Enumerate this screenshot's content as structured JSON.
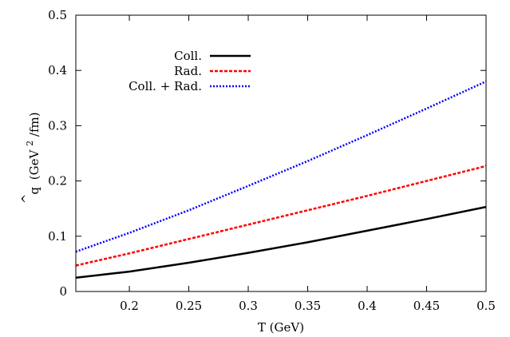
{
  "chart_data": {
    "type": "line",
    "xlabel": "T (GeV)",
    "ylabel": {
      "hat": "^",
      "symbol": "q",
      "unit_prefix": "(GeV",
      "unit_sup": "2",
      "unit_suffix": "/fm)"
    },
    "xlim": [
      0.155,
      0.5
    ],
    "ylim": [
      0,
      0.5
    ],
    "x_ticks": [
      0.2,
      0.25,
      0.3,
      0.35,
      0.4,
      0.45,
      0.5
    ],
    "x_tick_labels": [
      "0.2",
      "0.25",
      "0.3",
      "0.35",
      "0.4",
      "0.45",
      "0.5"
    ],
    "y_ticks": [
      0,
      0.1,
      0.2,
      0.3,
      0.4,
      0.5
    ],
    "y_tick_labels": [
      "0",
      "0.1",
      "0.2",
      "0.3",
      "0.4",
      "0.5"
    ],
    "grid": false,
    "legend_position": "top-left",
    "series": [
      {
        "name": "Coll.",
        "color": "#000000",
        "style": "solid",
        "x": [
          0.155,
          0.2,
          0.25,
          0.3,
          0.35,
          0.4,
          0.45,
          0.5
        ],
        "y": [
          0.025,
          0.036,
          0.052,
          0.07,
          0.089,
          0.11,
          0.131,
          0.153
        ]
      },
      {
        "name": "Rad.",
        "color": "#ff0000",
        "style": "dashed",
        "x": [
          0.155,
          0.2,
          0.25,
          0.3,
          0.35,
          0.4,
          0.45,
          0.5
        ],
        "y": [
          0.047,
          0.069,
          0.095,
          0.121,
          0.147,
          0.173,
          0.2,
          0.227
        ]
      },
      {
        "name": "Coll. + Rad.",
        "color": "#0000ff",
        "style": "dotted",
        "x": [
          0.155,
          0.2,
          0.25,
          0.3,
          0.35,
          0.4,
          0.45,
          0.5
        ],
        "y": [
          0.072,
          0.106,
          0.147,
          0.191,
          0.236,
          0.283,
          0.331,
          0.38
        ]
      }
    ]
  }
}
